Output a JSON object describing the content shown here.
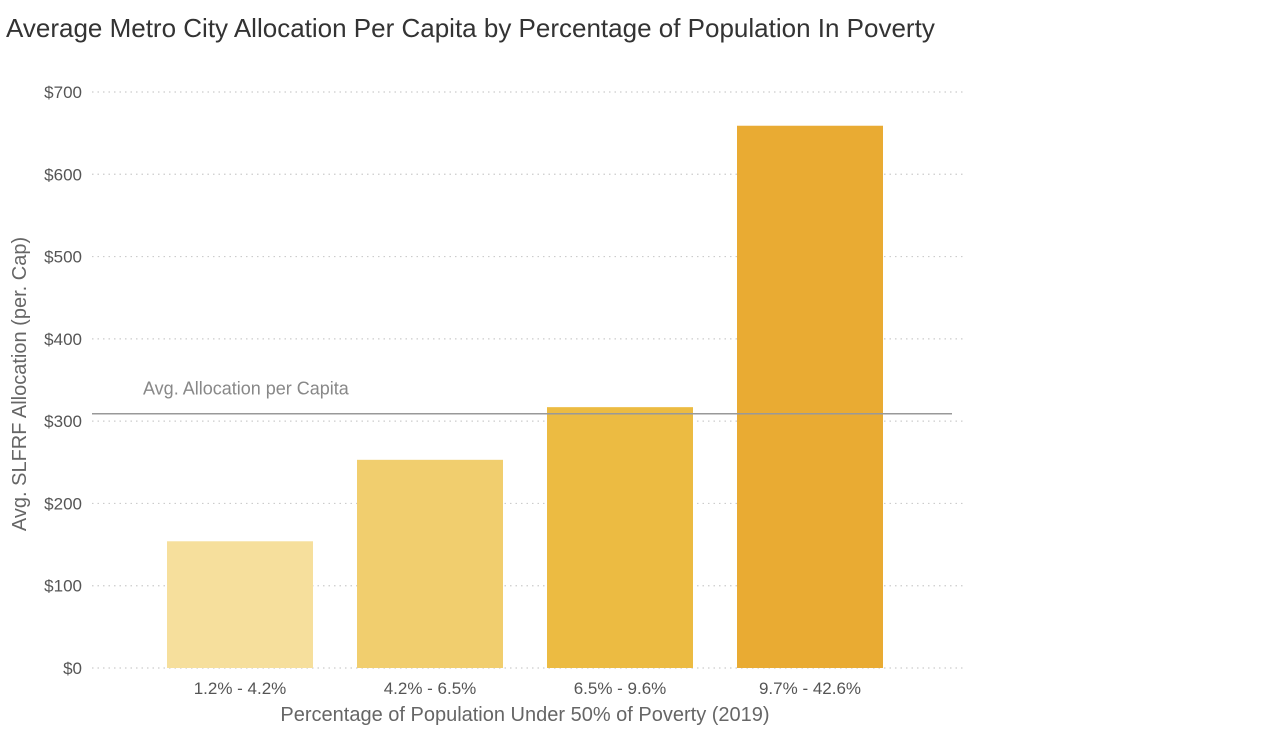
{
  "chart_data": {
    "type": "bar",
    "title": "Average Metro City Allocation Per Capita by Percentage of Population In Poverty",
    "xlabel": "Percentage of Population Under 50% of Poverty (2019)",
    "ylabel": "Avg. SLFRF Allocation (per. Cap)",
    "categories": [
      "1.2% - 4.2%",
      "4.2% - 6.5%",
      "6.5% - 9.6%",
      "9.7% - 42.6%"
    ],
    "values": [
      154,
      253,
      317,
      659
    ],
    "bar_colors": [
      "#F6DF9C",
      "#F1CE6E",
      "#ECBB42",
      "#E9AB33"
    ],
    "ylim": [
      0,
      700
    ],
    "yticks": [
      0,
      100,
      200,
      300,
      400,
      500,
      600,
      700
    ],
    "ytick_labels": [
      "$0",
      "$100",
      "$200",
      "$300",
      "$400",
      "$500",
      "$600",
      "$700"
    ],
    "grid": true,
    "reference_line": {
      "value": 309,
      "label": "Avg. Allocation per Capita",
      "color": "#999999"
    },
    "legend": "none"
  }
}
